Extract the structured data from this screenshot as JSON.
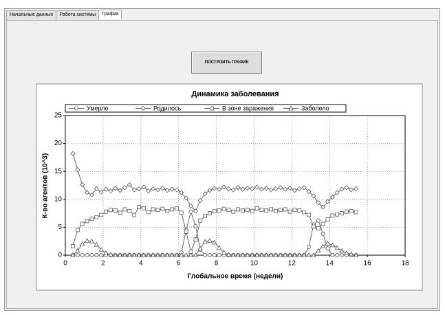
{
  "tabs": [
    "Начальные данные",
    "Работа системы",
    "График"
  ],
  "button": "ПОСТРОИТЬ ГРАФИК",
  "chart_data": {
    "type": "line",
    "title": "Динамика заболевания",
    "x_label": "Глобальное время (недели)",
    "y_label": "К-во агентов (10^3)",
    "x": [
      0.4,
      0.65,
      0.9,
      1.15,
      1.4,
      1.65,
      1.9,
      2.15,
      2.4,
      2.65,
      2.9,
      3.15,
      3.4,
      3.65,
      3.9,
      4.15,
      4.4,
      4.65,
      4.9,
      5.15,
      5.4,
      5.65,
      5.9,
      6.15,
      6.4,
      6.65,
      6.9,
      7.15,
      7.4,
      7.65,
      7.9,
      8.15,
      8.4,
      8.65,
      8.9,
      9.15,
      9.4,
      9.65,
      9.9,
      10.15,
      10.4,
      10.65,
      10.9,
      11.15,
      11.4,
      11.65,
      11.9,
      12.15,
      12.4,
      12.65,
      12.9,
      13.15,
      13.4,
      13.65,
      13.9,
      14.15,
      14.4,
      14.65,
      14.9,
      15.15,
      15.4
    ],
    "series": [
      {
        "name": "Умерло",
        "color": "#555555",
        "marker": "circle",
        "values": [
          0,
          0,
          0,
          0,
          0,
          0,
          0,
          0,
          0,
          0,
          0,
          0,
          0,
          0,
          0,
          0,
          0,
          0,
          0,
          0,
          0,
          0,
          0,
          0.5,
          4.5,
          7.8,
          5.2,
          1.0,
          0,
          0,
          0,
          0,
          0,
          0,
          0,
          0,
          0,
          0,
          0,
          0,
          0,
          0,
          0,
          0,
          0,
          0,
          0,
          0,
          0,
          0,
          1.5,
          5.5,
          6.2,
          3.8,
          1.2,
          0,
          0,
          0,
          0,
          0,
          0
        ]
      },
      {
        "name": "Родилось",
        "color": "#555555",
        "marker": "diamond",
        "values": [
          18.2,
          15.3,
          12.6,
          11.2,
          10.8,
          11.9,
          11.3,
          11.8,
          11.5,
          12.0,
          11.6,
          12.1,
          12.6,
          11.7,
          11.9,
          12.2,
          11.5,
          11.9,
          11.7,
          12.0,
          11.6,
          11.8,
          11.7,
          11.2,
          10.2,
          8.8,
          7.9,
          9.8,
          11.0,
          11.6,
          12.0,
          11.8,
          12.2,
          11.9,
          11.7,
          12.1,
          11.8,
          12.0,
          11.9,
          12.2,
          11.8,
          12.0,
          11.7,
          11.9,
          12.1,
          11.8,
          12.0,
          11.6,
          11.9,
          12.1,
          11.4,
          10.6,
          9.4,
          8.6,
          9.6,
          10.4,
          11.2,
          11.8,
          12.1,
          11.7,
          11.9
        ]
      },
      {
        "name": "В зоне заражения",
        "color": "#555555",
        "marker": "square",
        "values": [
          1.6,
          4.5,
          5.6,
          6.1,
          6.5,
          6.8,
          7.2,
          7.8,
          8.1,
          8.0,
          7.6,
          8.2,
          7.9,
          7.2,
          8.6,
          8.4,
          7.7,
          8.2,
          8.1,
          8.3,
          7.9,
          8.2,
          8.4,
          7.6,
          4.2,
          0.6,
          2.8,
          6.2,
          7.0,
          7.5,
          7.9,
          8.0,
          8.3,
          8.1,
          7.8,
          8.2,
          8.0,
          8.1,
          7.9,
          8.4,
          8.1,
          8.0,
          8.2,
          7.9,
          8.1,
          8.2,
          7.8,
          8.1,
          8.0,
          7.7,
          7.2,
          5.1,
          4.8,
          5.6,
          6.4,
          7.1,
          7.3,
          7.5,
          7.8,
          7.9,
          7.7
        ]
      },
      {
        "name": "Заболело",
        "color": "#555555",
        "marker": "triangle",
        "values": [
          0,
          0.8,
          2.0,
          2.6,
          2.5,
          1.9,
          1.0,
          0.4,
          0.1,
          0,
          0,
          0,
          0,
          0,
          0,
          0,
          0,
          0,
          0,
          0,
          0,
          0,
          0,
          0,
          0,
          0,
          0,
          1.2,
          2.4,
          2.6,
          2.3,
          1.3,
          0.5,
          0.1,
          0,
          0,
          0,
          0,
          0,
          0,
          0,
          0,
          0,
          0,
          0,
          0,
          0,
          0,
          0,
          0,
          0,
          0,
          0.8,
          1.6,
          2.1,
          1.8,
          1.3,
          0.8,
          0.4,
          0.2,
          0
        ]
      }
    ],
    "xlim": [
      0,
      18
    ],
    "xticks": [
      0,
      2,
      4,
      6,
      8,
      10,
      12,
      14,
      16,
      18
    ],
    "ylim": [
      0,
      25
    ],
    "yticks": [
      0,
      5,
      10,
      15,
      20,
      25
    ],
    "grid": true,
    "legend": "top"
  }
}
